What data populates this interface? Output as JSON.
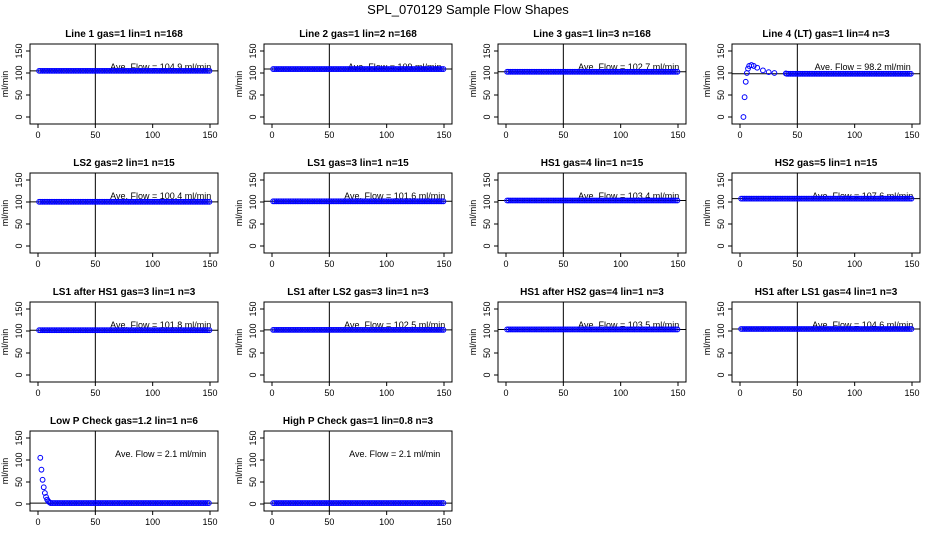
{
  "figure": {
    "title": "SPL_070129  Sample Flow Shapes"
  },
  "axes_common": {
    "ylabel": "ml/min",
    "xlim": [
      0,
      150
    ],
    "ylim": [
      0,
      150
    ],
    "xticks": [
      0,
      50,
      100,
      150
    ],
    "yticks": [
      0,
      50,
      100,
      150
    ],
    "vline_x": 50,
    "point_color": "#0000ff",
    "line_color": "#000000"
  },
  "chart_data": [
    {
      "type": "scatter",
      "title": "Line 1 gas=1 lin=1 n=168",
      "annotation": "Ave. Flow =  104.9  ml/min",
      "ref_y": 104.9,
      "shape": "flat",
      "level": 104.9
    },
    {
      "type": "scatter",
      "title": "Line 2 gas=1 lin=2 n=168",
      "annotation": "Ave. Flow =  109  ml/min",
      "ref_y": 109,
      "shape": "flat",
      "level": 109
    },
    {
      "type": "scatter",
      "title": "Line 3 gas=1 lin=3 n=168",
      "annotation": "Ave. Flow =  102.7  ml/min",
      "ref_y": 102.7,
      "shape": "flat",
      "level": 102.7
    },
    {
      "type": "scatter",
      "title": "Line 4 (LT) gas=1 lin=4 n=3",
      "annotation": "Ave. Flow =  98.2  ml/min",
      "ref_y": 98.2,
      "shape": "overshoot",
      "level": 98.2,
      "start_points": [
        [
          3,
          0
        ],
        [
          4,
          45
        ],
        [
          5,
          80
        ],
        [
          6,
          100
        ],
        [
          7,
          110
        ],
        [
          8,
          116
        ],
        [
          10,
          118
        ],
        [
          12,
          116
        ],
        [
          15,
          112
        ],
        [
          20,
          106
        ],
        [
          25,
          102
        ],
        [
          30,
          100
        ],
        [
          40,
          99
        ]
      ]
    },
    {
      "type": "scatter",
      "title": "LS2 gas=2 lin=1 n=15",
      "annotation": "Ave. Flow =  100.4  ml/min",
      "ref_y": 100.4,
      "shape": "flat",
      "level": 100.4
    },
    {
      "type": "scatter",
      "title": "LS1 gas=3 lin=1 n=15",
      "annotation": "Ave. Flow =  101.6  ml/min",
      "ref_y": 101.6,
      "shape": "flat",
      "level": 101.6
    },
    {
      "type": "scatter",
      "title": "HS1 gas=4 lin=1 n=15",
      "annotation": "Ave. Flow =  103.4  ml/min",
      "ref_y": 103.4,
      "shape": "flat",
      "level": 103.4
    },
    {
      "type": "scatter",
      "title": "HS2 gas=5 lin=1 n=15",
      "annotation": "Ave. Flow =  107.6  ml/min",
      "ref_y": 107.6,
      "shape": "flat",
      "level": 107.6
    },
    {
      "type": "scatter",
      "title": "LS1 after HS1 gas=3 lin=1 n=3",
      "annotation": "Ave. Flow =  101.8  ml/min",
      "ref_y": 101.8,
      "shape": "flat",
      "level": 101.8
    },
    {
      "type": "scatter",
      "title": "LS1 after LS2 gas=3 lin=1 n=3",
      "annotation": "Ave. Flow =  102.5  ml/min",
      "ref_y": 102.5,
      "shape": "flat",
      "level": 102.5
    },
    {
      "type": "scatter",
      "title": "HS1 after HS2 gas=4 lin=1 n=3",
      "annotation": "Ave. Flow =  103.5  ml/min",
      "ref_y": 103.5,
      "shape": "flat",
      "level": 103.5
    },
    {
      "type": "scatter",
      "title": "HS1 after LS1 gas=4 lin=1 n=3",
      "annotation": "Ave. Flow =  104.6  ml/min",
      "ref_y": 104.6,
      "shape": "flat",
      "level": 104.6
    },
    {
      "type": "scatter",
      "title": "Low P Check gas=1.2 lin=1 n=6",
      "annotation": "Ave. Flow =  2.1  ml/min",
      "ref_y": 2.1,
      "shape": "decay",
      "level": 2.1,
      "start_points": [
        [
          2,
          105
        ],
        [
          3,
          78
        ],
        [
          4,
          55
        ],
        [
          5,
          38
        ],
        [
          6,
          25
        ],
        [
          7,
          16
        ],
        [
          8,
          10
        ],
        [
          9,
          6
        ],
        [
          10,
          4
        ]
      ]
    },
    {
      "type": "scatter",
      "title": "High P Check gas=1 lin=0.8 n=3",
      "annotation": "Ave. Flow =  2.1  ml/min",
      "ref_y": 2.1,
      "shape": "flat",
      "level": 2.1
    }
  ]
}
